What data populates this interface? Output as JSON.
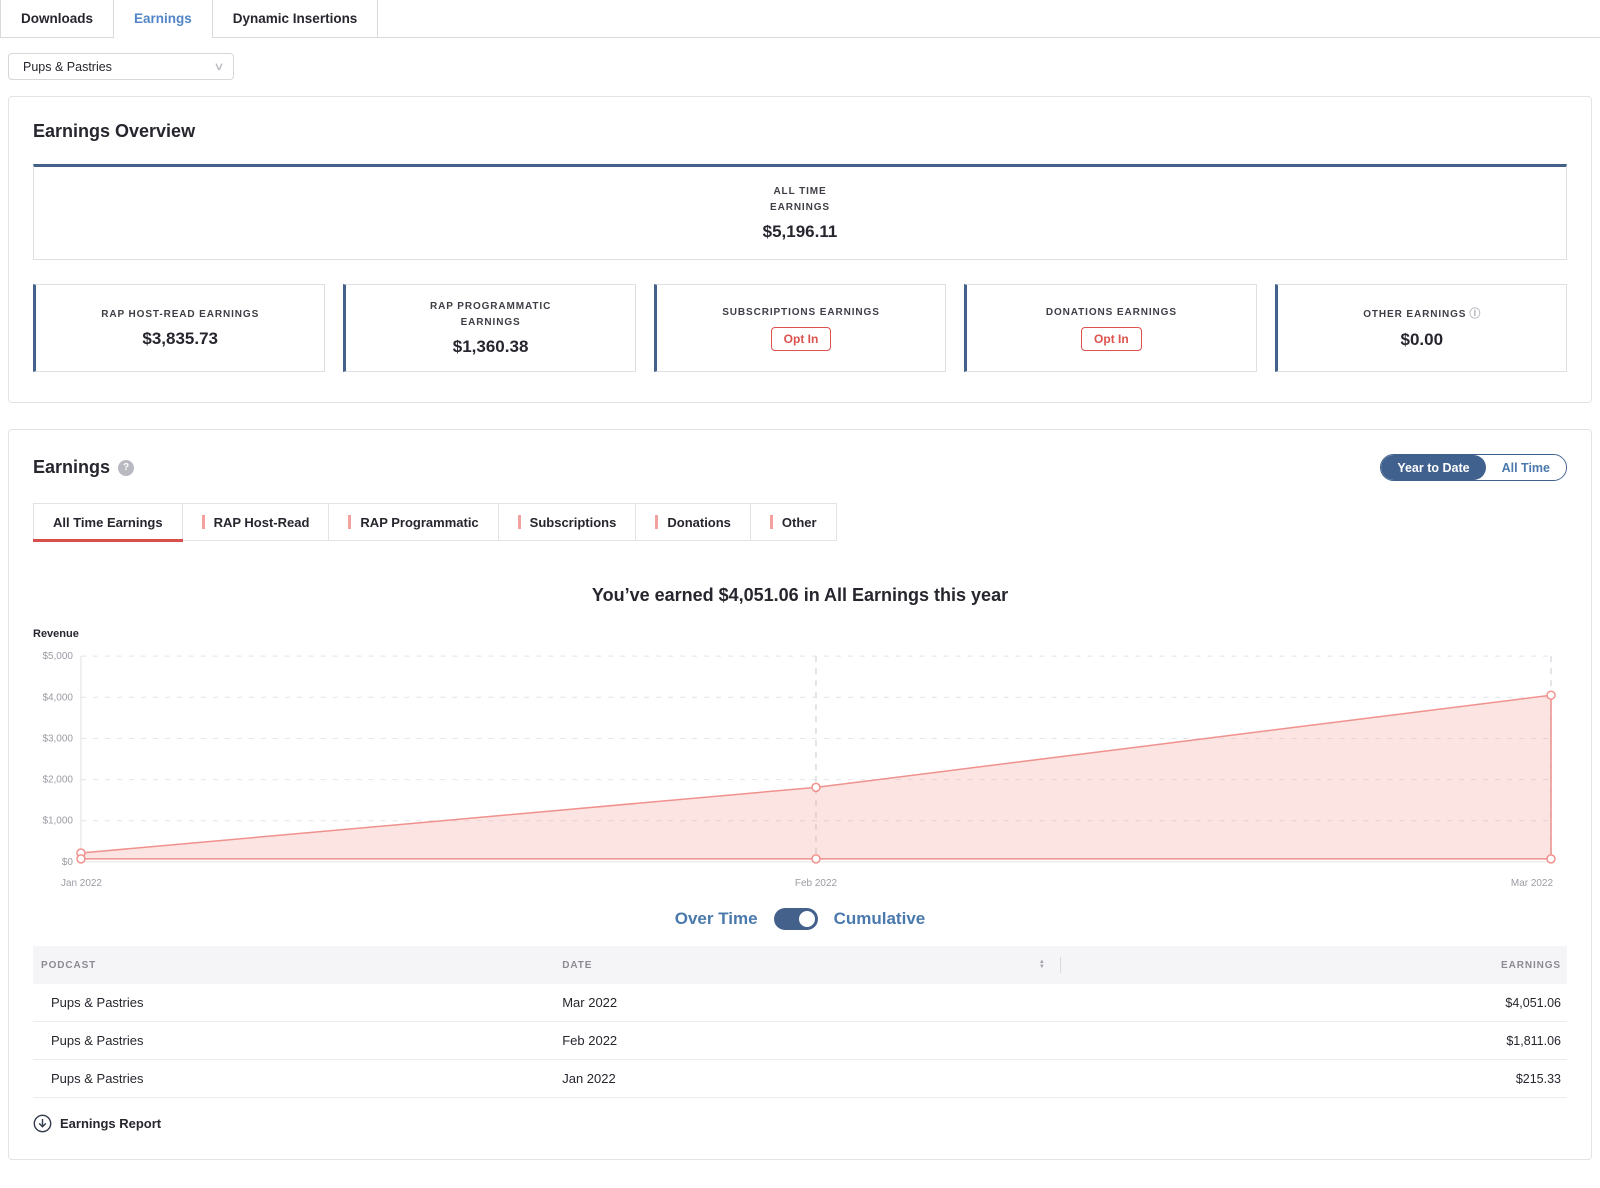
{
  "page_tabs": [
    {
      "label": "Downloads",
      "active": false
    },
    {
      "label": "Earnings",
      "active": true
    },
    {
      "label": "Dynamic Insertions",
      "active": false
    }
  ],
  "podcast_select": {
    "value": "Pups & Pastries"
  },
  "overview": {
    "title": "Earnings Overview",
    "all_time": {
      "label": "All Time Earnings",
      "value": "$5,196.11"
    },
    "stats": [
      {
        "label": "RAP Host-Read Earnings",
        "value": "$3,835.73"
      },
      {
        "label": "RAP Programmatic Earnings",
        "value": "$1,360.38"
      },
      {
        "label": "Subscriptions Earnings",
        "button": "Opt In"
      },
      {
        "label": "Donations Earnings",
        "button": "Opt In"
      },
      {
        "label": "Other Earnings",
        "value": "$0.00",
        "info": true
      }
    ]
  },
  "earnings": {
    "title": "Earnings",
    "range_toggle": [
      {
        "label": "Year to Date",
        "active": true
      },
      {
        "label": "All Time",
        "active": false
      }
    ],
    "tabs": [
      {
        "label": "All Time Earnings",
        "active": true
      },
      {
        "label": "RAP Host-Read",
        "active": false
      },
      {
        "label": "RAP Programmatic",
        "active": false
      },
      {
        "label": "Subscriptions",
        "active": false
      },
      {
        "label": "Donations",
        "active": false
      },
      {
        "label": "Other",
        "active": false
      }
    ],
    "headline": "You’ve earned $4,051.06 in All Earnings this year",
    "mode_toggle": {
      "left": "Over Time",
      "right": "Cumulative",
      "selected": "Cumulative"
    }
  },
  "chart_data": {
    "type": "area",
    "title": "You’ve earned $4,051.06 in All Earnings this year",
    "ylabel": "Revenue",
    "x": [
      "Jan 2022",
      "Feb 2022",
      "Mar 2022"
    ],
    "series": [
      {
        "name": "Cumulative All Earnings",
        "values": [
          215.33,
          1811.06,
          4051.06
        ]
      }
    ],
    "baseline_values": [
      0,
      0,
      0
    ],
    "ylim": [
      0,
      5000
    ],
    "ytick_values": [
      0,
      1000,
      2000,
      3000,
      4000,
      5000
    ],
    "ytick_labels": [
      "$0",
      "$1,000",
      "$2,000",
      "$3,000",
      "$4,000",
      "$5,000"
    ],
    "grid": "dashed",
    "legend": "none",
    "line_color": "#f0918d",
    "fill_color": "rgba(243,158,154,0.28)"
  },
  "table": {
    "headers": [
      "Podcast",
      "Date",
      "Earnings"
    ],
    "rows": [
      {
        "podcast": "Pups & Pastries",
        "date": "Mar 2022",
        "earnings": "$4,051.06"
      },
      {
        "podcast": "Pups & Pastries",
        "date": "Feb 2022",
        "earnings": "$1,811.06"
      },
      {
        "podcast": "Pups & Pastries",
        "date": "Jan 2022",
        "earnings": "$215.33"
      }
    ],
    "footer_link": "Earnings Report"
  },
  "colors": {
    "accent_blue": "#44618c",
    "link_blue": "#4a79ad",
    "active_tab_blue": "#5185c8",
    "alert_red": "#dd524c",
    "tab_underline_red": "#d94f4b",
    "chart_pink": "#f0918d"
  }
}
